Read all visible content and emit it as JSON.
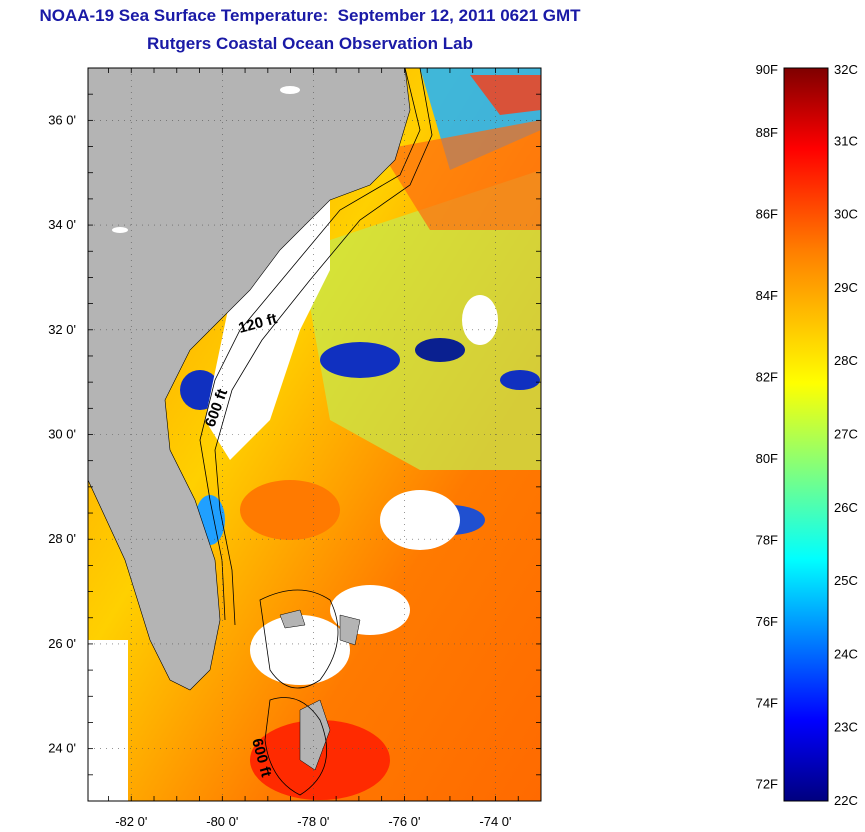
{
  "title": {
    "line1": "NOAA-19 Sea Surface Temperature:  September 12, 2011 0621 GMT",
    "line2": "Rutgers Coastal Ocean Observation Lab"
  },
  "map": {
    "lat_ticks": [
      {
        "value": 36,
        "label": "36 0'"
      },
      {
        "value": 34,
        "label": "34 0'"
      },
      {
        "value": 32,
        "label": "32 0'"
      },
      {
        "value": 30,
        "label": "30 0'"
      },
      {
        "value": 28,
        "label": "28 0'"
      },
      {
        "value": 26,
        "label": "26 0'"
      },
      {
        "value": 24,
        "label": "24 0'"
      }
    ],
    "lon_ticks": [
      {
        "value": -82,
        "label": "-82 0'"
      },
      {
        "value": -80,
        "label": "-80 0'"
      },
      {
        "value": -78,
        "label": "-78 0'"
      },
      {
        "value": -76,
        "label": "-76 0'"
      },
      {
        "value": -74,
        "label": "-74 0'"
      }
    ],
    "contour_labels": [
      "120 ft",
      "600 ft",
      "600 ft"
    ],
    "land_color": "#b4b4b4",
    "no_data_color": "#ffffff"
  },
  "colorbar": {
    "fahrenheit": [
      "90F",
      "88F",
      "86F",
      "84F",
      "82F",
      "80F",
      "78F",
      "76F",
      "74F",
      "72F"
    ],
    "celsius": [
      "32C",
      "31C",
      "30C",
      "29C",
      "28C",
      "27C",
      "26C",
      "25C",
      "24C",
      "23C",
      "22C"
    ],
    "colors": [
      "#00007f",
      "#0000ff",
      "#007fff",
      "#00ffff",
      "#7fff7f",
      "#ffff00",
      "#ff7f00",
      "#ff0000",
      "#7f0000"
    ]
  }
}
